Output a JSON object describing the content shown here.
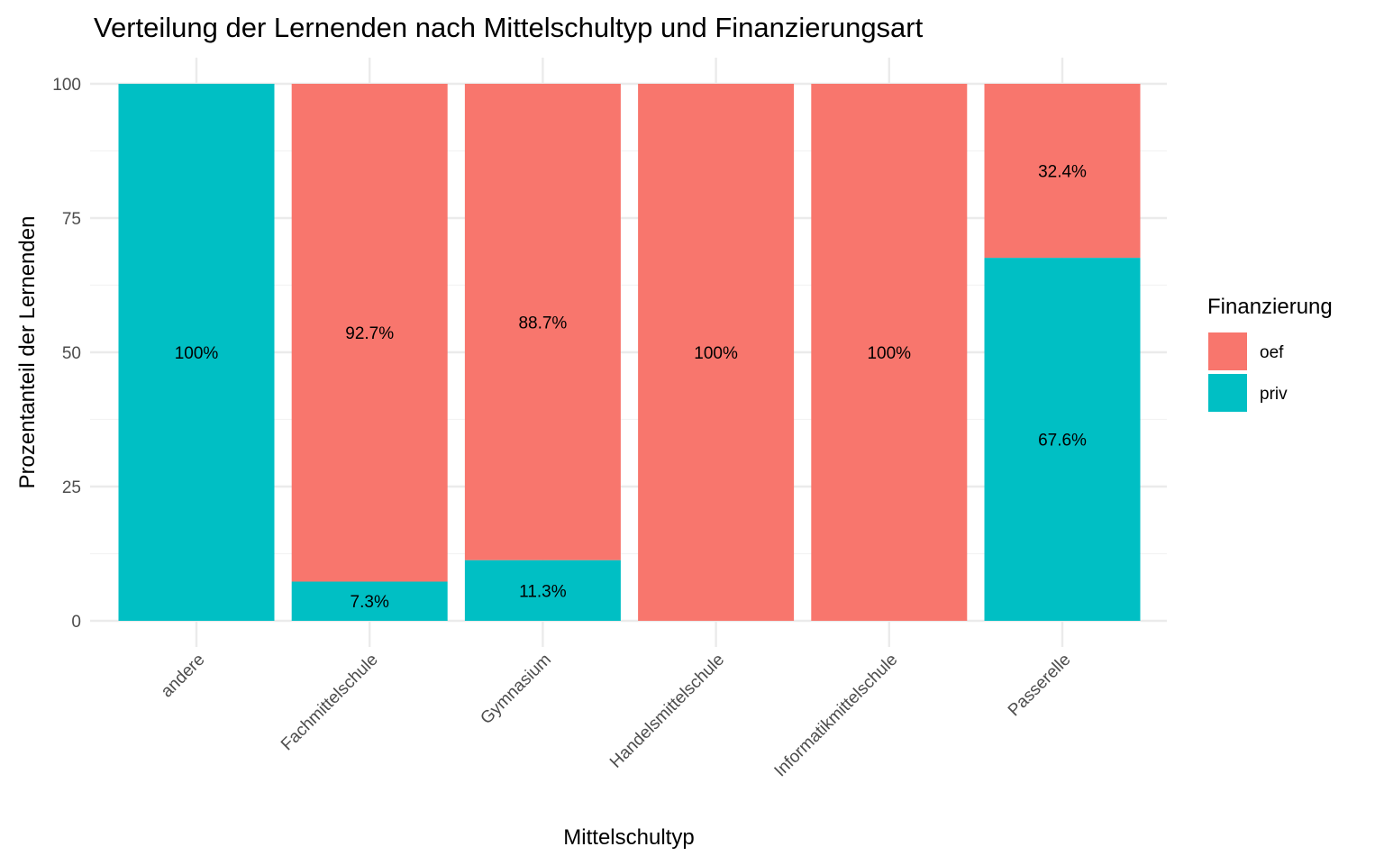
{
  "chart_data": {
    "type": "bar",
    "stacked": true,
    "title": "Verteilung der Lernenden nach Mittelschultyp und Finanzierungsart",
    "xlabel": "Mittelschultyp",
    "ylabel": "Prozentanteil der Lernenden",
    "ylim": [
      0,
      100
    ],
    "yticks": [
      0,
      25,
      50,
      75,
      100
    ],
    "ytick_labels": [
      "0",
      "25",
      "50",
      "75",
      "100"
    ],
    "grid": true,
    "categories": [
      "andere",
      "Fachmittelschule",
      "Gymnasium",
      "Handelsmittelschule",
      "Informatikmittelschule",
      "Passerelle"
    ],
    "series": [
      {
        "name": "priv",
        "color": "#00BFC4",
        "values": [
          100,
          7.3,
          11.3,
          0,
          0,
          67.6
        ],
        "labels": [
          "100%",
          "7.3%",
          "11.3%",
          null,
          null,
          "67.6%"
        ]
      },
      {
        "name": "oef",
        "color": "#F8766D",
        "values": [
          0,
          92.7,
          88.7,
          100,
          100,
          32.4
        ],
        "labels": [
          null,
          "92.7%",
          "88.7%",
          "100%",
          "100%",
          "32.4%"
        ]
      }
    ],
    "legend": {
      "title": "Finanzierung",
      "position": "right",
      "entries": [
        {
          "label": "oef",
          "color": "#F8766D"
        },
        {
          "label": "priv",
          "color": "#00BFC4"
        }
      ]
    }
  }
}
